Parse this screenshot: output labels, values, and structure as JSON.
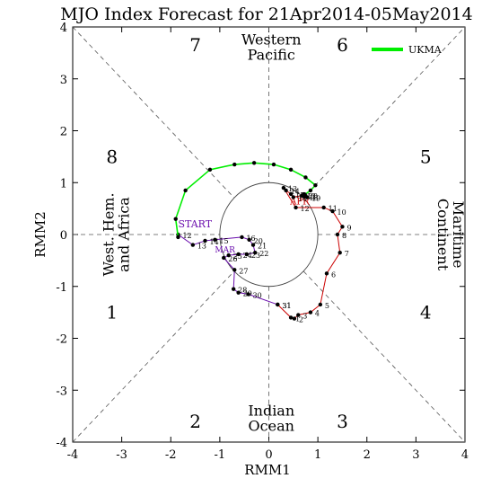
{
  "chart_data": {
    "type": "line",
    "title": "MJO Index Forecast for 21Apr2014-05May2014",
    "xlabel": "RMM1",
    "ylabel": "RMM2",
    "xlim": [
      -4,
      4
    ],
    "ylim": [
      -4,
      4
    ],
    "x_ticks": [
      -4,
      -3,
      -2,
      -1,
      0,
      1,
      2,
      3,
      4
    ],
    "y_ticks": [
      -4,
      -3,
      -2,
      -1,
      0,
      1,
      2,
      3,
      4
    ],
    "x_tick_labels": [
      "-4",
      "-3",
      "-2",
      "-1",
      "0",
      "1",
      "2",
      "3",
      "4"
    ],
    "y_tick_labels": [
      "-4",
      "-3",
      "-2",
      "-1",
      "0",
      "1",
      "2",
      "3",
      "4"
    ],
    "unit_circle_radius": 1,
    "legend": {
      "position": "top-right",
      "entries": [
        {
          "label": "UKMA",
          "color": "#00ee00"
        }
      ]
    },
    "phase_labels": [
      {
        "text": "1",
        "x": -3.2,
        "y": -1.5
      },
      {
        "text": "2",
        "x": -1.5,
        "y": -3.6
      },
      {
        "text": "3",
        "x": 1.5,
        "y": -3.6
      },
      {
        "text": "4",
        "x": 3.2,
        "y": -1.5
      },
      {
        "text": "5",
        "x": 3.2,
        "y": 1.5
      },
      {
        "text": "6",
        "x": 1.5,
        "y": 3.65
      },
      {
        "text": "7",
        "x": -1.5,
        "y": 3.65
      },
      {
        "text": "8",
        "x": -3.2,
        "y": 1.5
      }
    ],
    "region_labels": [
      {
        "name": "western-pacific",
        "lines": [
          "Western",
          "Pacific"
        ],
        "x": 0.05,
        "y": 3.6
      },
      {
        "name": "indian-ocean",
        "lines": [
          "Indian",
          "Ocean"
        ],
        "x": 0.05,
        "y": -3.55
      },
      {
        "name": "west-hem-africa",
        "lines": [
          "West. Hem.",
          "and Africa"
        ],
        "x": -3.1,
        "y": 0,
        "rotate": -90
      },
      {
        "name": "maritime-continent",
        "lines": [
          "Maritime",
          "Continent"
        ],
        "x": 3.7,
        "y": 0,
        "rotate": 90
      }
    ],
    "start_label": {
      "text": "START",
      "x": -1.85,
      "y": 0.14,
      "color": "#6a0dad"
    },
    "apr_label": {
      "text": "APR",
      "x": 0.63,
      "y": 0.58,
      "color": "#cc0000"
    },
    "mar_label": {
      "text": "MAR",
      "x": -1.1,
      "y": -0.35,
      "color": "#6a0dad"
    },
    "series": [
      {
        "name": "",
        "color": "#6a0dad",
        "points": [
          {
            "x": -1.85,
            "y": 0.0,
            "label": "12"
          },
          {
            "x": -1.55,
            "y": -0.2,
            "label": "13"
          },
          {
            "x": -1.3,
            "y": -0.12,
            "label": "14"
          },
          {
            "x": -1.1,
            "y": -0.1,
            "label": "15"
          },
          {
            "x": -0.55,
            "y": -0.05,
            "label": "16"
          },
          {
            "x": -0.4,
            "y": -0.1,
            "label": "20"
          },
          {
            "x": -0.32,
            "y": -0.2,
            "label": "21"
          },
          {
            "x": -0.28,
            "y": -0.35,
            "label": "22"
          },
          {
            "x": -0.45,
            "y": -0.38,
            "label": "23"
          },
          {
            "x": -0.62,
            "y": -0.38,
            "label": "24"
          },
          {
            "x": -0.82,
            "y": -0.4,
            "label": "25"
          },
          {
            "x": -0.92,
            "y": -0.45,
            "label": "26"
          },
          {
            "x": -0.7,
            "y": -0.68,
            "label": "27"
          },
          {
            "x": -0.72,
            "y": -1.05,
            "label": "28"
          },
          {
            "x": -0.62,
            "y": -1.12,
            "label": "29"
          },
          {
            "x": -0.42,
            "y": -1.15,
            "label": "30"
          },
          {
            "x": 0.18,
            "y": -1.35,
            "label": "31"
          }
        ]
      },
      {
        "name": "",
        "color": "#cc0000",
        "points": [
          {
            "x": 0.18,
            "y": -1.35,
            "label": "31"
          },
          {
            "x": 0.45,
            "y": -1.6,
            "label": "1"
          },
          {
            "x": 0.52,
            "y": -1.62,
            "label": "2"
          },
          {
            "x": 0.6,
            "y": -1.55,
            "label": "3"
          },
          {
            "x": 0.85,
            "y": -1.5,
            "label": "4"
          },
          {
            "x": 1.05,
            "y": -1.35,
            "label": "5"
          },
          {
            "x": 1.18,
            "y": -0.75,
            "label": "6"
          },
          {
            "x": 1.45,
            "y": -0.35,
            "label": "7"
          },
          {
            "x": 1.4,
            "y": 0.0,
            "label": "8"
          },
          {
            "x": 1.5,
            "y": 0.15,
            "label": "9"
          },
          {
            "x": 1.3,
            "y": 0.45,
            "label": "10"
          },
          {
            "x": 1.12,
            "y": 0.52,
            "label": "11"
          },
          {
            "x": 0.55,
            "y": 0.52,
            "label": "12"
          },
          {
            "x": 0.3,
            "y": 0.9,
            "label": "13"
          },
          {
            "x": 0.35,
            "y": 0.85,
            "label": "14"
          },
          {
            "x": 0.45,
            "y": 0.78,
            "label": "15"
          },
          {
            "x": 0.5,
            "y": 0.72,
            "label": "16"
          },
          {
            "x": 0.68,
            "y": 0.75,
            "label": "17"
          },
          {
            "x": 0.73,
            "y": 0.73,
            "label": "18"
          },
          {
            "x": 0.78,
            "y": 0.72,
            "label": "19"
          },
          {
            "x": 0.72,
            "y": 0.76,
            "label": "20"
          }
        ]
      },
      {
        "name": "UKMA",
        "color": "#00ee00",
        "points": [
          {
            "x": 0.72,
            "y": 0.76
          },
          {
            "x": 0.85,
            "y": 0.85
          },
          {
            "x": 0.95,
            "y": 0.95
          },
          {
            "x": 0.75,
            "y": 1.1
          },
          {
            "x": 0.45,
            "y": 1.25
          },
          {
            "x": 0.1,
            "y": 1.35
          },
          {
            "x": -0.3,
            "y": 1.38
          },
          {
            "x": -0.7,
            "y": 1.35
          },
          {
            "x": -1.2,
            "y": 1.25
          },
          {
            "x": -1.7,
            "y": 0.85
          },
          {
            "x": -1.9,
            "y": 0.3
          },
          {
            "x": -1.85,
            "y": -0.05
          }
        ]
      }
    ]
  }
}
